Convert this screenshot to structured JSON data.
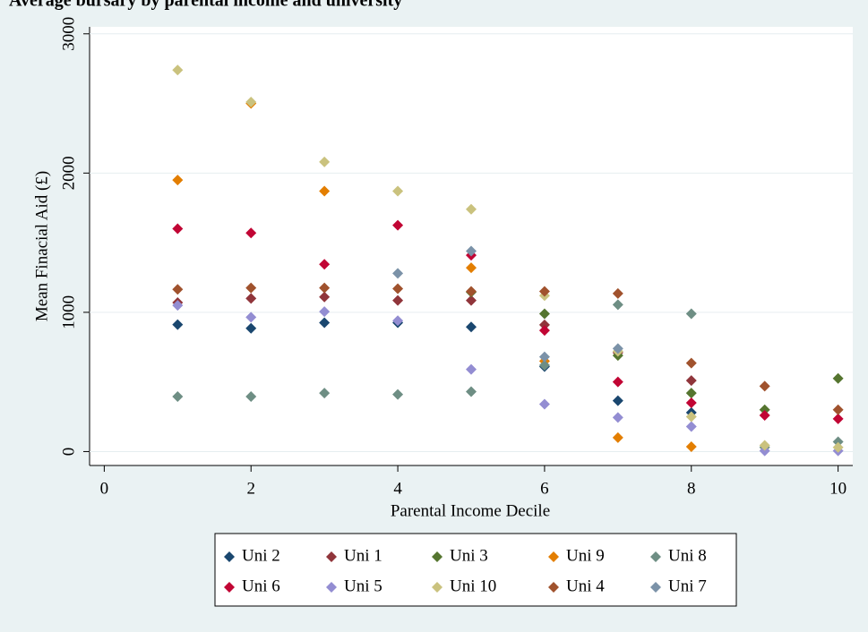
{
  "chart_data": {
    "type": "scatter",
    "title": "Average bursary by parental income and university",
    "xlabel": "Parental Income Decile",
    "ylabel": "Mean Finacial Aid (£)",
    "x": [
      1,
      2,
      3,
      4,
      5,
      6,
      7,
      8,
      9,
      10
    ],
    "xlim": [
      -0.2,
      10.2
    ],
    "xticks": [
      0,
      2,
      4,
      6,
      8,
      10
    ],
    "ylim": [
      -100,
      3050
    ],
    "yticks": [
      0,
      1000,
      2000,
      3000
    ],
    "grid": true,
    "legend": "bottom",
    "series": [
      {
        "name": "Uni 2",
        "color": "#1a476f",
        "values": [
          912,
          885,
          925,
          925,
          895,
          610,
          365,
          280,
          null,
          null
        ]
      },
      {
        "name": "Uni 1",
        "color": "#90353b",
        "values": [
          1070,
          1100,
          1110,
          1085,
          1085,
          910,
          710,
          510,
          null,
          null
        ]
      },
      {
        "name": "Uni 3",
        "color": "#55752f",
        "values": [
          null,
          null,
          null,
          null,
          1145,
          990,
          690,
          420,
          300,
          525
        ]
      },
      {
        "name": "Uni 9",
        "color": "#e37e00",
        "values": [
          1950,
          2500,
          1870,
          null,
          1320,
          650,
          100,
          35,
          null,
          null
        ]
      },
      {
        "name": "Uni 8",
        "color": "#6e8e84",
        "values": [
          395,
          395,
          420,
          410,
          430,
          620,
          1055,
          990,
          30,
          70
        ]
      },
      {
        "name": "Uni 6",
        "color": "#c10534",
        "values": [
          1600,
          1570,
          1345,
          1625,
          1410,
          870,
          500,
          350,
          260,
          235
        ]
      },
      {
        "name": "Uni 5",
        "color": "#938dd2",
        "values": [
          1050,
          965,
          1005,
          940,
          590,
          340,
          245,
          180,
          5,
          5
        ]
      },
      {
        "name": "Uni 10",
        "color": "#cac27e",
        "values": [
          2740,
          2510,
          2080,
          1870,
          1740,
          1120,
          720,
          250,
          45,
          30
        ]
      },
      {
        "name": "Uni 4",
        "color": "#a0522d",
        "values": [
          1165,
          1175,
          1175,
          1170,
          1150,
          1150,
          1135,
          635,
          470,
          300
        ]
      },
      {
        "name": "Uni 7",
        "color": "#7b92a8",
        "values": [
          null,
          null,
          null,
          1280,
          1440,
          680,
          740,
          null,
          null,
          null
        ]
      }
    ]
  }
}
